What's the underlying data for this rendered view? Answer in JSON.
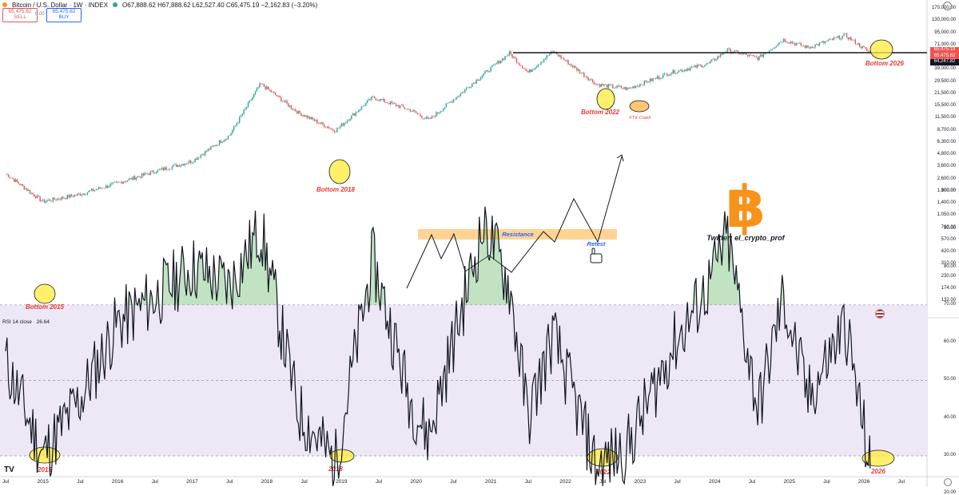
{
  "header": {
    "symbol": "Bitcoin / U.S. Dollar · 1W · INDEX",
    "ohlc": "O67,888.62 H67,888.62 L62,527.40 C65,475.19 −2,162.83 (−3.20%)",
    "sell_price": "65,475.82",
    "sell_label": "SELL",
    "spread": "0.00",
    "buy_price": "65,475.82",
    "buy_label": "BUY"
  },
  "price_axis": {
    "labels": [
      "170,000.00",
      "130,000.00",
      "95,000.00",
      "71,000.00",
      "52,000.00",
      "39,000.00",
      "29,500.00",
      "21,500.00",
      "15,500.00",
      "11,500.00",
      "8,700.00",
      "6,300.00",
      "4,800.00",
      "3,600.00",
      "2,600.00",
      "1,900.00",
      "1,400.00",
      "1,050.00",
      "760.00",
      "570.00",
      "420.00",
      "310.00",
      "230.00",
      "174.00",
      "132.00"
    ],
    "current_price": "65,475.19",
    "current_sub": "65,475.82",
    "line_price": "64,247.82"
  },
  "rsi_axis": {
    "labels": [
      "100.00",
      "90.00",
      "80.00",
      "70.00",
      "60.00",
      "50.00",
      "40.00",
      "30.00",
      "20.00"
    ],
    "indicator_label": "RSI 14 close",
    "indicator_value": "26.64"
  },
  "time_axis": [
    "Jul",
    "2015",
    "Jul",
    "2016",
    "Jul",
    "2017",
    "Jul",
    "2018",
    "Jul",
    "2019",
    "Jul",
    "2020",
    "Jul",
    "2021",
    "Jul",
    "2022",
    "Jul",
    "2023",
    "Jul",
    "2024",
    "Jul",
    "2025",
    "Jul",
    "2026",
    "Jul"
  ],
  "annotations": {
    "bottom_2015": "Bottom 2015",
    "bottom_2018": "Bottom 2018",
    "bottom_2022": "Bottom 2022",
    "ftx_crash": "FTX-Crash",
    "bottom_2026": "Bottom 2026",
    "resistance": "Resistance",
    "retest": "Retest",
    "twitter": "Twitter: el_crypto_prof",
    "rsi_2015": "2015",
    "rsi_2018": "2018",
    "rsi_2022": "2022",
    "rsi_2026": "2026"
  },
  "colors": {
    "up": "#26a69a",
    "down": "#ef5350",
    "annotation_red": "#e53935",
    "highlight_yellow": "#ffeb3b",
    "resistance_band": "#ffcc80",
    "rsi_band": "#ede7f6",
    "bitcoin_orange": "#f7931a",
    "retest_blue": "#2962ff"
  },
  "icons": [
    "bitcoin-logo-icon",
    "hand-pointer-icon",
    "tradingview-logo-icon",
    "us-flag-icon",
    "settings-icon"
  ],
  "chart_data": [
    {
      "type": "line",
      "title": "Bitcoin / U.S. Dollar · 1W · INDEX",
      "y_scale": "log",
      "x": [
        "2015",
        "2016",
        "2017",
        "2018",
        "2019",
        "2020",
        "2021",
        "2022",
        "2023",
        "2024",
        "2025",
        "2026"
      ],
      "series": [
        {
          "name": "",
          "x": [
            "2014-07",
            "2015-01",
            "2015-07",
            "2016-01",
            "2016-07",
            "2017-01",
            "2017-07",
            "2017-12",
            "2018-06",
            "2018-12",
            "2019-06",
            "2019-12",
            "2020-03",
            "2020-12",
            "2021-04",
            "2021-07",
            "2021-11",
            "2022-06",
            "2022-11",
            "2023-06",
            "2023-12",
            "2024-03",
            "2024-08",
            "2024-12",
            "2025-04",
            "2025-10",
            "2026-02"
          ],
          "y": [
            620,
            210,
            280,
            430,
            670,
            1000,
            2700,
            19500,
            6500,
            3200,
            11500,
            7200,
            4800,
            29000,
            63000,
            30000,
            68000,
            19000,
            16000,
            30000,
            42000,
            71000,
            52000,
            106000,
            78000,
            125000,
            64000
          ]
        }
      ],
      "horizontal_line": 64247.82,
      "annotations": [
        "Bottom 2015",
        "Bottom 2018",
        "Bottom 2022",
        "FTX-Crash",
        "Bottom 2026",
        "Resistance",
        "Retest"
      ]
    },
    {
      "type": "line",
      "title": "RSI 14 close",
      "ylim": [
        20,
        100
      ],
      "bands": [
        30,
        70
      ],
      "series": [
        {
          "name": "RSI 14 close",
          "x": [
            "2014-07",
            "2015-01",
            "2015-07",
            "2016-01",
            "2016-07",
            "2017-01",
            "2017-07",
            "2017-12",
            "2018-06",
            "2018-12",
            "2019-06",
            "2019-12",
            "2020-03",
            "2020-12",
            "2021-04",
            "2021-07",
            "2021-11",
            "2022-06",
            "2022-11",
            "2023-06",
            "2023-12",
            "2024-03",
            "2024-08",
            "2024-12",
            "2025-04",
            "2025-10",
            "2026-02"
          ],
          "y": [
            55,
            30,
            45,
            65,
            72,
            80,
            75,
            90,
            42,
            28,
            82,
            45,
            35,
            92,
            75,
            40,
            62,
            27,
            32,
            58,
            75,
            88,
            42,
            72,
            45,
            65,
            26.64
          ]
        }
      ]
    }
  ]
}
